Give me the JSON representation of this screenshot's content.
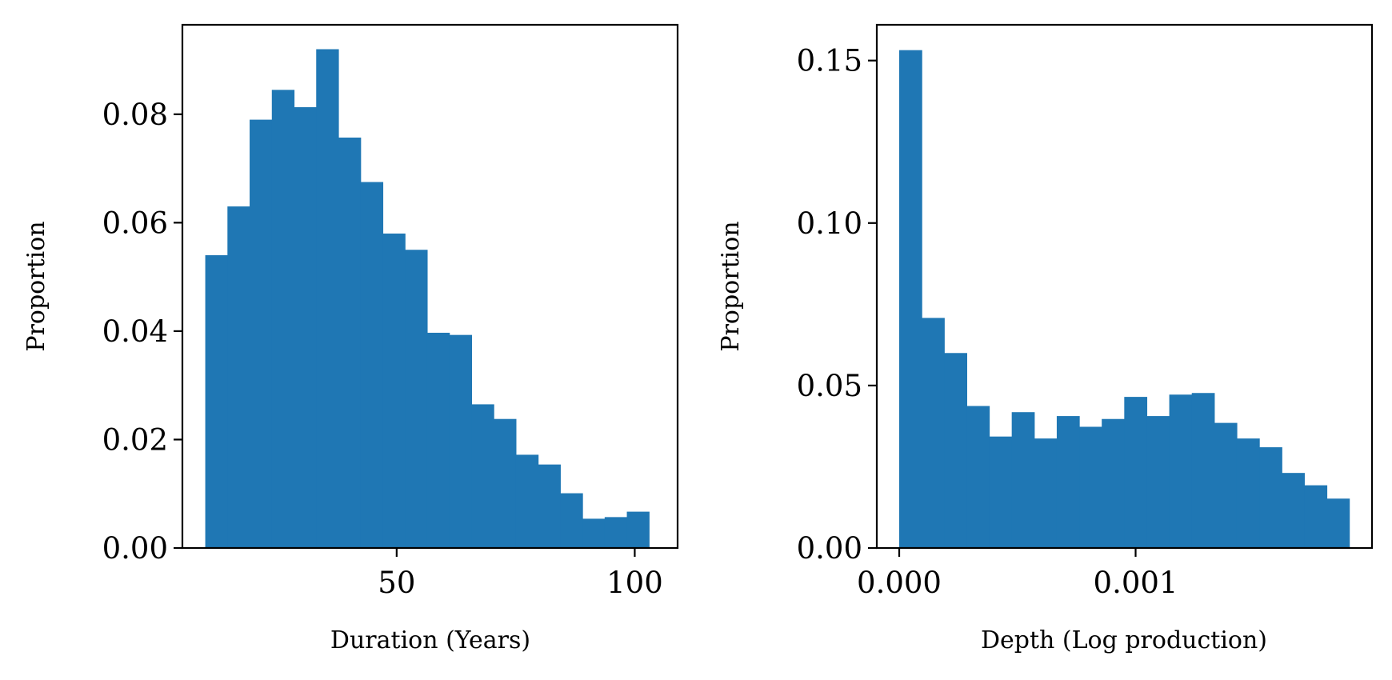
{
  "chart_data": [
    {
      "type": "bar",
      "histogram": true,
      "xlabel": "Duration (Years)",
      "ylabel": "Proportion",
      "xlim": [
        5,
        109
      ],
      "ylim": [
        0,
        0.0965
      ],
      "xticks": [
        50,
        100
      ],
      "xtick_labels": [
        "50",
        "100"
      ],
      "yticks": [
        0,
        0.02,
        0.04,
        0.06,
        0.08
      ],
      "ytick_labels": [
        "0.00",
        "0.02",
        "0.04",
        "0.06",
        "0.08"
      ],
      "bin_start": 9.8,
      "bin_width": 4.66,
      "values": [
        0.054,
        0.063,
        0.079,
        0.0845,
        0.0813,
        0.092,
        0.0757,
        0.0675,
        0.058,
        0.055,
        0.0397,
        0.0393,
        0.0265,
        0.0238,
        0.0172,
        0.0154,
        0.0101,
        0.0054,
        0.0057,
        0.0067
      ],
      "color": "#1f77b4",
      "grid": false
    },
    {
      "type": "bar",
      "histogram": true,
      "xlabel": "Depth (Log production)",
      "ylabel": "Proportion",
      "xlim": [
        -9.48e-05,
        0.002
      ],
      "ylim": [
        0,
        0.161
      ],
      "xticks": [
        0,
        0.001
      ],
      "xtick_labels": [
        "0.000",
        "0.001"
      ],
      "yticks": [
        0,
        0.05,
        0.1,
        0.15
      ],
      "ytick_labels": [
        "0.00",
        "0.05",
        "0.10",
        "0.15"
      ],
      "bin_start": 0.0,
      "bin_width": 9.52e-05,
      "values": [
        0.1532,
        0.0708,
        0.06,
        0.0437,
        0.0343,
        0.0418,
        0.0337,
        0.0406,
        0.0373,
        0.0397,
        0.0465,
        0.0406,
        0.0472,
        0.0477,
        0.0385,
        0.0337,
        0.031,
        0.0231,
        0.0193,
        0.0152
      ],
      "color": "#1f77b4",
      "grid": false
    }
  ]
}
